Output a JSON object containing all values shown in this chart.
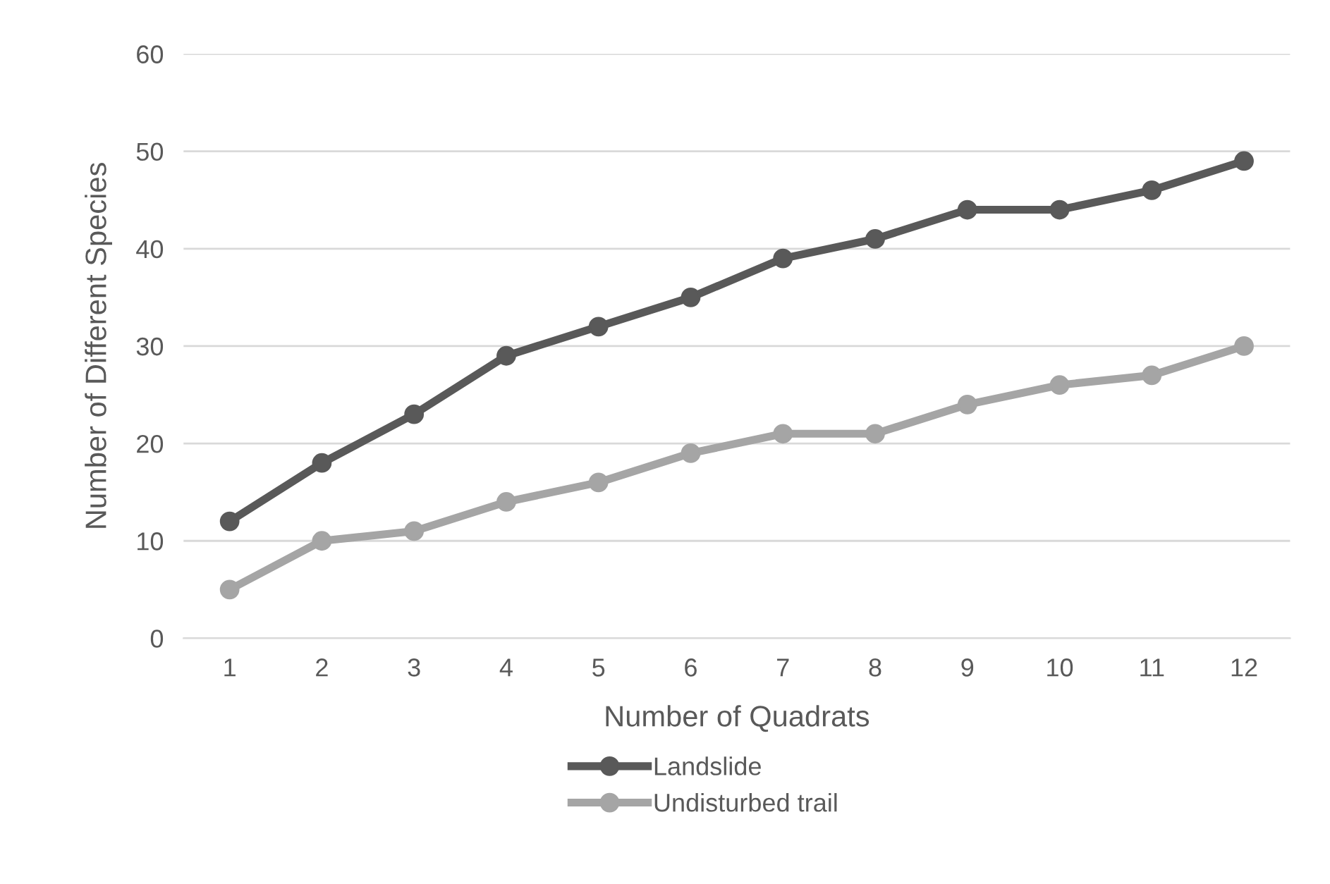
{
  "chart_data": {
    "type": "line",
    "xlabel": "Number of Quadrats",
    "ylabel": "Number of Different Species",
    "categories": [
      "1",
      "2",
      "3",
      "4",
      "5",
      "6",
      "7",
      "8",
      "9",
      "10",
      "11",
      "12"
    ],
    "series": [
      {
        "name": "Landslide",
        "color": "#595959",
        "values": [
          12,
          18,
          23,
          29,
          32,
          35,
          39,
          41,
          44,
          44,
          46,
          49
        ]
      },
      {
        "name": "Undisturbed trail",
        "color": "#a5a5a5",
        "values": [
          5,
          10,
          11,
          14,
          16,
          19,
          21,
          21,
          24,
          26,
          27,
          30
        ]
      }
    ],
    "ylim": [
      0,
      60
    ],
    "yticks": [
      0,
      10,
      20,
      30,
      40,
      50,
      60
    ],
    "grid": "y",
    "legend": "bottom",
    "marker": "circle",
    "line_style": "solid"
  }
}
